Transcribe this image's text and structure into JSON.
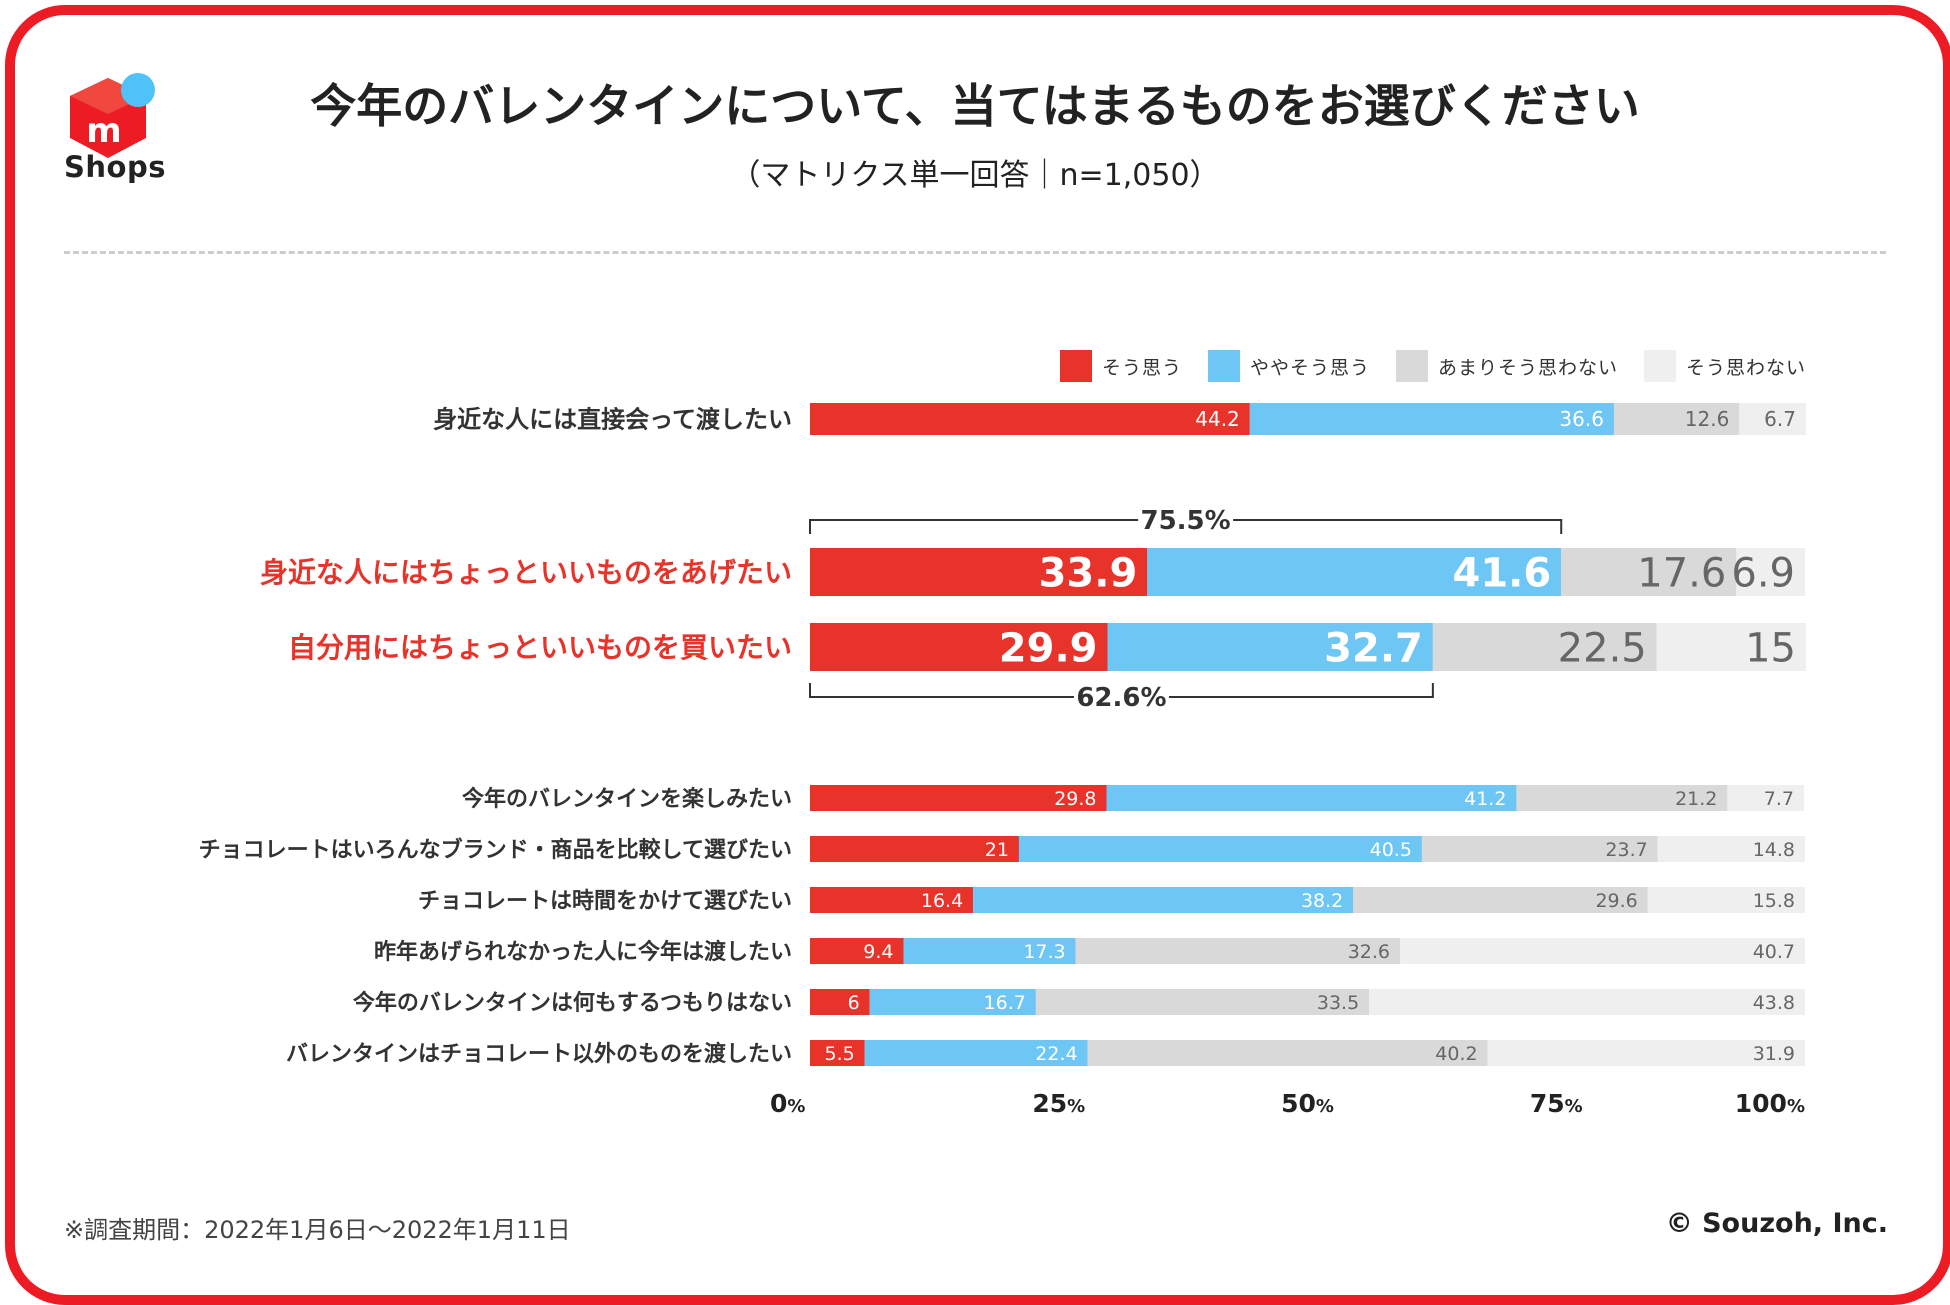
{
  "brand": {
    "logo_text": "Shops",
    "accent": "#ed1c24",
    "logo_badge_color": "#4fc3f7"
  },
  "header": {
    "title": "今年のバレンタインについて、当てはまるものをお選びください",
    "subtitle": "（マトリクス単一回答｜n=1,050）"
  },
  "footer": {
    "footnote": "※調査期間：2022年1月6日〜2022年1月11日",
    "copyright": "© Souzoh, Inc."
  },
  "chart_data": {
    "type": "bar",
    "stacked": true,
    "orientation": "horizontal",
    "legend_position": "top-right",
    "grid": false,
    "xlim": [
      0,
      100
    ],
    "x_ticks": [
      {
        "value": 0,
        "label": "0",
        "unit": "%"
      },
      {
        "value": 25,
        "label": "25",
        "unit": "%"
      },
      {
        "value": 50,
        "label": "50",
        "unit": "%"
      },
      {
        "value": 75,
        "label": "75",
        "unit": "%"
      },
      {
        "value": 100,
        "label": "100",
        "unit": "%"
      }
    ],
    "series": [
      {
        "name": "そう思う",
        "color": "#e8332a"
      },
      {
        "name": "ややそう思う",
        "color": "#6ec6f5"
      },
      {
        "name": "あまりそう思わない",
        "color": "#d9d9d9"
      },
      {
        "name": "そう思わない",
        "color": "#efefef"
      }
    ],
    "categories": [
      {
        "label": "身近な人には直接会って渡したい",
        "values": [
          44.2,
          36.6,
          12.6,
          6.7
        ],
        "labels": [
          "44.2",
          "36.6",
          "12.6",
          "6.7"
        ],
        "highlight": false
      },
      {
        "label": "身近な人にはちょっといいものをあげたい",
        "values": [
          33.9,
          41.6,
          17.6,
          6.9
        ],
        "labels": [
          "33.9",
          "41.6",
          "17.6",
          "6.9"
        ],
        "highlight": true
      },
      {
        "label": "自分用にはちょっといいものを買いたい",
        "values": [
          29.9,
          32.7,
          22.5,
          15
        ],
        "labels": [
          "29.9",
          "32.7",
          "22.5",
          "15"
        ],
        "highlight": true
      },
      {
        "label": "今年のバレンタインを楽しみたい",
        "values": [
          29.8,
          41.2,
          21.2,
          7.7
        ],
        "labels": [
          "29.8",
          "41.2",
          "21.2",
          "7.7"
        ],
        "highlight": false
      },
      {
        "label": "チョコレートはいろんなブランド・商品を比較して選びたい",
        "values": [
          21,
          40.5,
          23.7,
          14.8
        ],
        "labels": [
          "21",
          "40.5",
          "23.7",
          "14.8"
        ],
        "highlight": false
      },
      {
        "label": "チョコレートは時間をかけて選びたい",
        "values": [
          16.4,
          38.2,
          29.6,
          15.8
        ],
        "labels": [
          "16.4",
          "38.2",
          "29.6",
          "15.8"
        ],
        "highlight": false
      },
      {
        "label": "昨年あげられなかった人に今年は渡したい",
        "values": [
          9.4,
          17.3,
          32.6,
          40.7
        ],
        "labels": [
          "9.4",
          "17.3",
          "32.6",
          "40.7"
        ],
        "highlight": false
      },
      {
        "label": "今年のバレンタインは何もするつもりはない",
        "values": [
          6,
          16.7,
          33.5,
          43.8
        ],
        "labels": [
          "6",
          "16.7",
          "33.5",
          "43.8"
        ],
        "highlight": false
      },
      {
        "label": "バレンタインはチョコレート以外のものを渡したい",
        "values": [
          5.5,
          22.4,
          40.2,
          31.9
        ],
        "labels": [
          "5.5",
          "22.4",
          "40.2",
          "31.9"
        ],
        "highlight": false
      }
    ],
    "annotations": [
      {
        "text": "75.5%",
        "category_index": 1,
        "from": 0,
        "to": 75.5,
        "side": "above"
      },
      {
        "text": "62.6%",
        "category_index": 2,
        "from": 0,
        "to": 62.6,
        "side": "below"
      }
    ],
    "highlight_label_color": "#e8332a"
  }
}
